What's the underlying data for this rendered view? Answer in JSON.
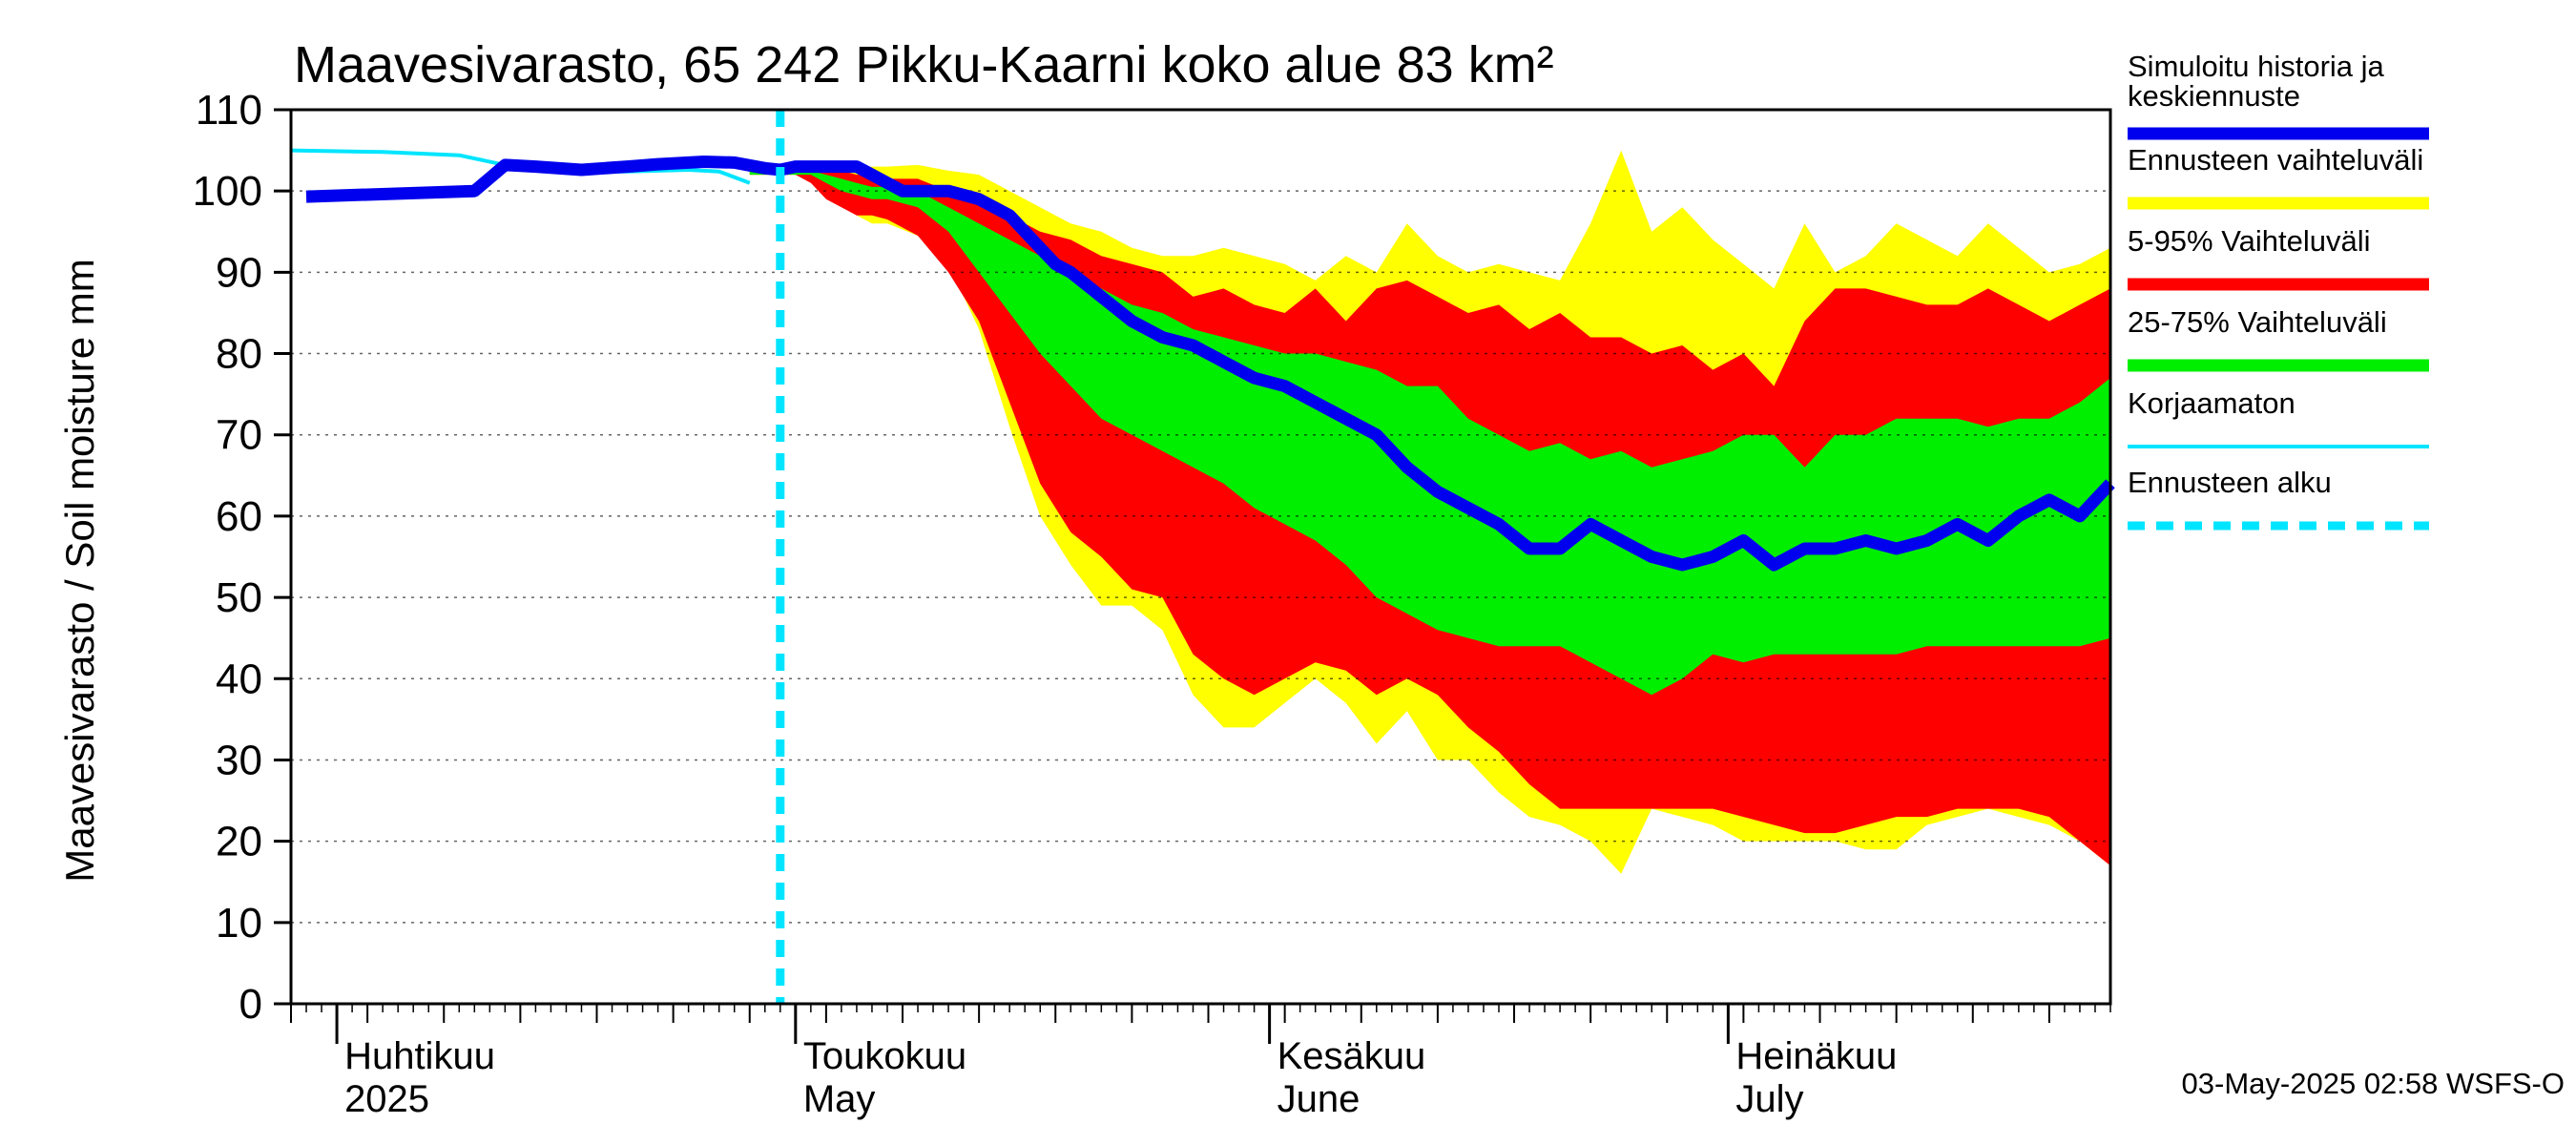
{
  "chart_data": {
    "type": "area",
    "title": "Maavesivarasto, 65 242 Pikku-Kaarni koko alue 83 km²",
    "ylabel": "Maavesivarasto / Soil moisture   mm",
    "ylim": [
      0,
      110
    ],
    "yticks": [
      "0",
      "10",
      "20",
      "30",
      "40",
      "50",
      "60",
      "70",
      "80",
      "90",
      "100",
      "110"
    ],
    "xlim_days": [
      -3,
      116
    ],
    "forecast_start_day": 29,
    "months": [
      {
        "day": 0,
        "fi": "Huhtikuu",
        "en": "2025"
      },
      {
        "day": 30,
        "fi": "Toukokuu",
        "en": "May"
      },
      {
        "day": 61,
        "fi": "Kesäkuu",
        "en": "June"
      },
      {
        "day": 91,
        "fi": "Heinäkuu",
        "en": "July"
      }
    ],
    "footer": "03-May-2025 02:58 WSFS-O",
    "band_days": [
      27,
      29,
      30,
      31,
      32,
      33,
      34,
      35,
      36,
      38,
      40,
      42,
      44,
      46,
      48,
      50,
      52,
      54,
      56,
      58,
      60,
      62,
      64,
      66,
      68,
      70,
      72,
      74,
      76,
      78,
      80,
      82,
      84,
      86,
      88,
      90,
      92,
      94,
      96,
      98,
      100,
      102,
      104,
      106,
      108,
      110,
      112,
      114,
      116
    ],
    "series": [
      {
        "name": "Ennusteen vaihteluväli",
        "color": "#ffff00",
        "kind": "band",
        "upper": [
          103,
          103,
          103,
          103.2,
          103.2,
          103,
          102.8,
          103,
          103,
          103.2,
          102.5,
          102,
          100,
          98,
          96,
          95,
          93,
          92,
          92,
          93,
          92,
          91,
          89,
          92,
          90,
          96,
          92,
          90,
          91,
          90,
          89,
          96,
          105,
          95,
          98,
          94,
          91,
          88,
          96,
          90,
          92,
          96,
          94,
          92,
          96,
          93,
          90,
          91,
          93
        ],
        "lower": [
          102,
          102,
          102,
          101.5,
          100.5,
          99,
          97,
          96,
          96,
          94.5,
          91,
          83,
          71,
          60,
          54,
          49,
          49,
          46,
          38,
          34,
          34,
          37,
          40,
          37,
          32,
          36,
          30,
          30,
          26,
          23,
          22,
          20,
          16,
          24,
          23,
          22,
          20,
          20,
          20,
          20,
          19,
          19,
          22,
          23,
          24,
          23,
          22,
          20,
          17
        ]
      },
      {
        "name": "5-95% Vaihteluväli",
        "color": "#ff0000",
        "kind": "band",
        "upper": [
          103,
          103,
          103,
          103,
          103,
          102.5,
          102,
          102,
          101.5,
          101.5,
          100,
          98.5,
          97,
          95,
          94,
          92,
          91,
          90,
          87,
          88,
          86,
          85,
          88,
          84,
          88,
          89,
          87,
          85,
          86,
          83,
          85,
          82,
          82,
          80,
          81,
          78,
          80,
          76,
          84,
          88,
          88,
          87,
          86,
          86,
          88,
          86,
          84,
          86,
          88
        ],
        "lower": [
          102,
          102,
          102,
          101,
          99,
          98,
          97,
          97,
          96.5,
          94.5,
          90,
          84,
          74,
          64,
          58,
          55,
          51,
          50,
          43,
          40,
          38,
          40,
          42,
          41,
          38,
          40,
          38,
          34,
          31,
          27,
          24,
          24,
          24,
          24,
          24,
          24,
          23,
          22,
          21,
          21,
          22,
          23,
          23,
          24,
          24,
          24,
          23,
          20,
          17
        ]
      },
      {
        "name": "25-75% Vaihteluväli",
        "color": "#00ee00",
        "kind": "band",
        "upper": [
          103,
          103,
          103,
          102.5,
          102,
          101.5,
          101,
          100.5,
          100.5,
          100,
          98,
          96,
          94,
          92,
          90,
          88,
          86,
          85,
          83,
          82,
          81,
          80,
          80,
          79,
          78,
          76,
          76,
          72,
          70,
          68,
          69,
          67,
          68,
          66,
          67,
          68,
          70,
          70,
          66,
          70,
          70,
          72,
          72,
          72,
          71,
          72,
          72,
          74,
          77
        ],
        "lower": [
          102,
          102,
          102,
          102,
          101,
          100,
          99.5,
          99,
          99,
          98,
          95,
          90,
          85,
          80,
          76,
          72,
          70,
          68,
          66,
          64,
          61,
          59,
          57,
          54,
          50,
          48,
          46,
          45,
          44,
          44,
          44,
          42,
          40,
          38,
          40,
          43,
          42,
          43,
          43,
          43,
          43,
          43,
          44,
          44,
          44,
          44,
          44,
          44,
          45
        ]
      },
      {
        "name": "Simuloitu historia ja keskiennuste",
        "color": "#0000ee",
        "kind": "line",
        "x": [
          -2,
          9,
          11,
          13,
          16,
          19,
          21,
          24,
          26,
          28,
          29,
          30,
          31,
          32,
          33,
          34,
          35,
          36,
          37,
          38,
          39,
          40,
          41,
          42,
          43,
          44,
          45,
          46,
          47,
          48,
          50,
          52,
          54,
          56,
          58,
          60,
          62,
          64,
          66,
          68,
          70,
          72,
          74,
          76,
          78,
          80,
          82,
          84,
          86,
          88,
          90,
          92,
          94,
          96,
          98,
          100,
          102,
          104,
          106,
          108,
          110,
          112,
          114,
          116
        ],
        "y": [
          99.3,
          100,
          103.2,
          103,
          102.6,
          103,
          103.3,
          103.6,
          103.5,
          102.8,
          102.6,
          103,
          103,
          103,
          103,
          103,
          102,
          101,
          100,
          100,
          100,
          100,
          99.5,
          99,
          98,
          97,
          95,
          93,
          91,
          90,
          87,
          84,
          82,
          81,
          79,
          77,
          76,
          74,
          72,
          70,
          66,
          63,
          61,
          59,
          56,
          56,
          59,
          57,
          55,
          54,
          55,
          57,
          54,
          56,
          56,
          57,
          56,
          57,
          59,
          57,
          60,
          62,
          60,
          64
        ]
      },
      {
        "name": "Korjaamaton",
        "color": "#00e5ff",
        "kind": "line",
        "x": [
          -3,
          3,
          8,
          11,
          13,
          16,
          19,
          23,
          25,
          27
        ],
        "y": [
          105,
          104.8,
          104.4,
          103.2,
          102.8,
          102.4,
          102.4,
          102.6,
          102.4,
          101
        ]
      },
      {
        "name": "Ennusteen alku",
        "color": "#00e5ff",
        "kind": "dashed-vertical"
      }
    ],
    "legend": [
      {
        "label": "Simuloitu historia ja\nkeskiennuste",
        "color": "#0000ee",
        "style": "line"
      },
      {
        "label": "Ennusteen vaihteluväli",
        "color": "#ffff00",
        "style": "line"
      },
      {
        "label": "5-95% Vaihteluväli",
        "color": "#ff0000",
        "style": "line"
      },
      {
        "label": "25-75% Vaihteluväli",
        "color": "#00ee00",
        "style": "line"
      },
      {
        "label": "Korjaamaton",
        "color": "#00e5ff",
        "style": "thin"
      },
      {
        "label": "Ennusteen alku",
        "color": "#00e5ff",
        "style": "dashed"
      }
    ]
  }
}
